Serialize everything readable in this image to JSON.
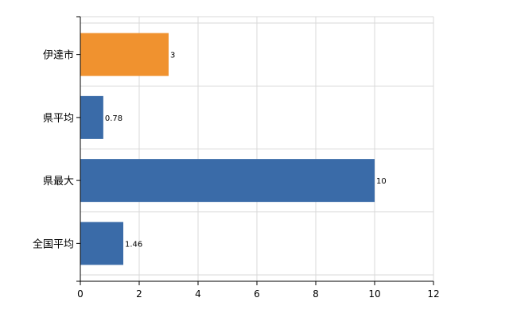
{
  "chart_data": {
    "type": "bar",
    "orientation": "horizontal",
    "categories": [
      "伊達市",
      "県平均",
      "県最大",
      "全国平均"
    ],
    "values": [
      3,
      0.78,
      10,
      1.46
    ],
    "value_labels": [
      "3",
      "0.78",
      "10",
      "1.46"
    ],
    "bar_colors": [
      "#f0922f",
      "#3a6ba8",
      "#3a6ba8",
      "#3a6ba8"
    ],
    "xlim": [
      0,
      12
    ],
    "x_ticks": [
      0,
      2,
      4,
      6,
      8,
      10,
      12
    ],
    "x_tick_labels": [
      "0",
      "2",
      "4",
      "6",
      "8",
      "10",
      "12"
    ],
    "title": "",
    "xlabel": "",
    "ylabel": "",
    "grid": true,
    "legend": "none"
  }
}
